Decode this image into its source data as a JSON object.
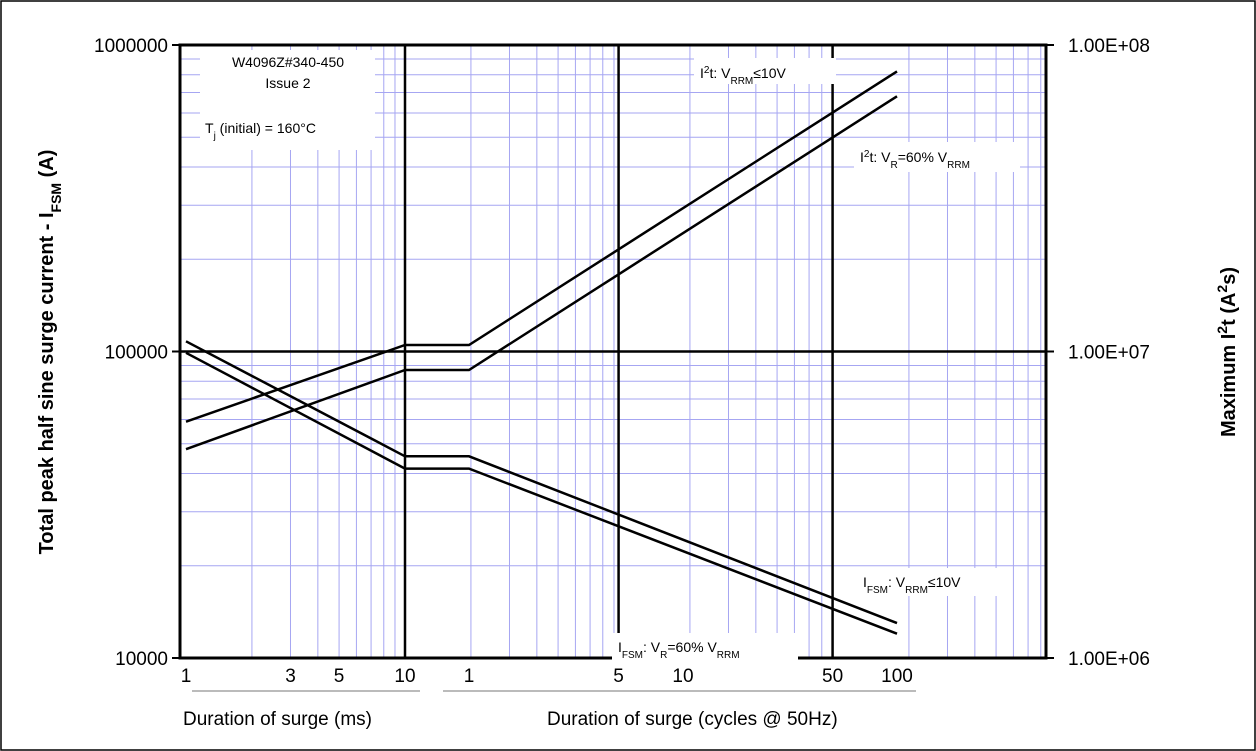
{
  "chart_data": {
    "type": "line",
    "annotations": {
      "part_number": "W4096Z#340-450",
      "issue": "Issue 2",
      "tj_initial": "T",
      "tj_sub": "j",
      "tj_rest": " (initial) = 160°C"
    },
    "y_left": {
      "label_main": "Total peak half sine surge current - I",
      "label_sub": "FSM",
      "label_unit": " (A)",
      "scale": "log",
      "range": [
        10000,
        1000000
      ],
      "ticks": [
        "1000000",
        "100000",
        "10000"
      ]
    },
    "y_right": {
      "label_main": "Maximum I",
      "label_sup": "2",
      "label_unit": "t (A",
      "label_sup2": "2",
      "label_end": "s)",
      "scale": "log",
      "range": [
        1000000,
        100000000
      ],
      "ticks": [
        "1.00E+08",
        "1.00E+07",
        "1.00E+06"
      ]
    },
    "x_ms": {
      "label": "Duration of surge (ms)",
      "scale": "log",
      "range": [
        1,
        10
      ],
      "ticks": [
        "1",
        "3",
        "5",
        "10"
      ]
    },
    "x_cycles": {
      "label": "Duration of surge (cycles @ 50Hz)",
      "scale": "log",
      "range": [
        1,
        100
      ],
      "ticks": [
        "1",
        "5",
        "10",
        "50",
        "100"
      ]
    },
    "series": [
      {
        "name": "I2t: VRRM≤10V",
        "label_parts": [
          "I",
          "2",
          "t: V",
          "RRM",
          "≤10V"
        ],
        "axis": "right",
        "segments": [
          {
            "x_unit": "ms",
            "x": [
              1,
              10
            ],
            "y": [
              5900000,
              10500000
            ]
          },
          {
            "x_unit": "cycles",
            "x": [
              1,
              100
            ],
            "y": [
              10500000,
              82000000
            ]
          }
        ]
      },
      {
        "name": "I2t: VR=60% VRRM",
        "label_parts": [
          "I",
          "2",
          "t: V",
          "R",
          "=60% V",
          "RRM"
        ],
        "axis": "right",
        "segments": [
          {
            "x_unit": "ms",
            "x": [
              1,
              10
            ],
            "y": [
              4800000,
              8700000
            ]
          },
          {
            "x_unit": "cycles",
            "x": [
              1,
              100
            ],
            "y": [
              8700000,
              68000000
            ]
          }
        ]
      },
      {
        "name": "IFSM: VRRM≤10V",
        "label_parts": [
          "I",
          "FSM",
          ": V",
          "RRM",
          "≤10V"
        ],
        "axis": "left",
        "segments": [
          {
            "x_unit": "ms",
            "x": [
              1,
              10
            ],
            "y": [
              108000,
              45500
            ]
          },
          {
            "x_unit": "cycles",
            "x": [
              1,
              100
            ],
            "y": [
              45500,
              13000
            ]
          }
        ]
      },
      {
        "name": "IFSM: VR=60% VRRM",
        "label_parts": [
          "I",
          "FSM",
          ": V",
          "R",
          "=60% V",
          "RRM"
        ],
        "axis": "left",
        "segments": [
          {
            "x_unit": "ms",
            "x": [
              1,
              10
            ],
            "y": [
              99000,
              41500
            ]
          },
          {
            "x_unit": "cycles",
            "x": [
              1,
              100
            ],
            "y": [
              41500,
              12000
            ]
          }
        ]
      }
    ],
    "grid": true,
    "colors": {
      "grid_minor": "#a6a6f2",
      "grid_major": "#000000",
      "line": "#000000"
    }
  }
}
